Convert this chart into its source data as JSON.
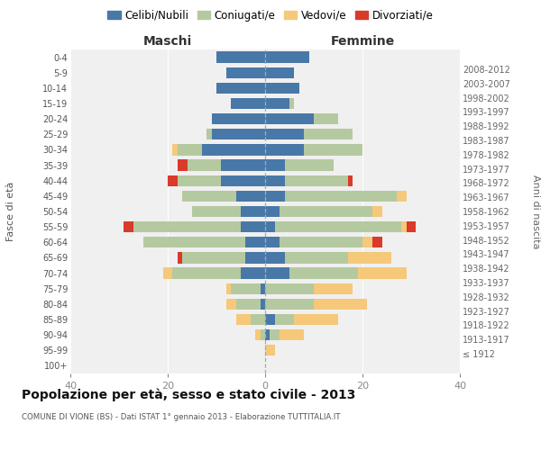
{
  "age_groups": [
    "100+",
    "95-99",
    "90-94",
    "85-89",
    "80-84",
    "75-79",
    "70-74",
    "65-69",
    "60-64",
    "55-59",
    "50-54",
    "45-49",
    "40-44",
    "35-39",
    "30-34",
    "25-29",
    "20-24",
    "15-19",
    "10-14",
    "5-9",
    "0-4"
  ],
  "birth_years": [
    "≤ 1912",
    "1913-1917",
    "1918-1922",
    "1923-1927",
    "1928-1932",
    "1933-1937",
    "1938-1942",
    "1943-1947",
    "1948-1952",
    "1953-1957",
    "1958-1962",
    "1963-1967",
    "1968-1972",
    "1973-1977",
    "1978-1982",
    "1983-1987",
    "1988-1992",
    "1993-1997",
    "1998-2002",
    "2003-2007",
    "2008-2012"
  ],
  "maschi": {
    "celibi": [
      0,
      0,
      0,
      0,
      1,
      1,
      5,
      4,
      4,
      5,
      5,
      6,
      9,
      9,
      13,
      11,
      11,
      7,
      10,
      8,
      10
    ],
    "coniugati": [
      0,
      0,
      1,
      3,
      5,
      6,
      14,
      13,
      21,
      22,
      10,
      11,
      9,
      7,
      5,
      1,
      0,
      0,
      0,
      0,
      0
    ],
    "vedovi": [
      0,
      0,
      1,
      3,
      2,
      1,
      2,
      0,
      0,
      0,
      0,
      0,
      0,
      0,
      1,
      0,
      0,
      0,
      0,
      0,
      0
    ],
    "divorziati": [
      0,
      0,
      0,
      0,
      0,
      0,
      0,
      1,
      0,
      2,
      0,
      0,
      2,
      2,
      0,
      0,
      0,
      0,
      0,
      0,
      0
    ]
  },
  "femmine": {
    "nubili": [
      0,
      0,
      1,
      2,
      0,
      0,
      5,
      4,
      3,
      2,
      3,
      4,
      4,
      4,
      8,
      8,
      10,
      5,
      7,
      6,
      9
    ],
    "coniugate": [
      0,
      0,
      2,
      4,
      10,
      10,
      14,
      13,
      17,
      26,
      19,
      23,
      13,
      10,
      12,
      10,
      5,
      1,
      0,
      0,
      0
    ],
    "vedove": [
      0,
      2,
      5,
      9,
      11,
      8,
      10,
      9,
      2,
      1,
      2,
      2,
      0,
      0,
      0,
      0,
      0,
      0,
      0,
      0,
      0
    ],
    "divorziate": [
      0,
      0,
      0,
      0,
      0,
      0,
      0,
      0,
      2,
      2,
      0,
      0,
      1,
      0,
      0,
      0,
      0,
      0,
      0,
      0,
      0
    ]
  },
  "colors": {
    "celibi_nubili": "#4878a8",
    "coniugati": "#b5c9a0",
    "vedovi": "#f5c87a",
    "divorziati": "#d93a2a"
  },
  "xlim": 40,
  "title": "Popolazione per età, sesso e stato civile - 2013",
  "subtitle": "COMUNE DI VIONE (BS) - Dati ISTAT 1° gennaio 2013 - Elaborazione TUTTITALIA.IT",
  "ylabel_left": "Fasce di età",
  "ylabel_right": "Anni di nascita",
  "xlabel_maschi": "Maschi",
  "xlabel_femmine": "Femmine",
  "legend_labels": [
    "Celibi/Nubili",
    "Coniugati/e",
    "Vedovi/e",
    "Divorziati/e"
  ],
  "bg_color": "#f0f0f0"
}
